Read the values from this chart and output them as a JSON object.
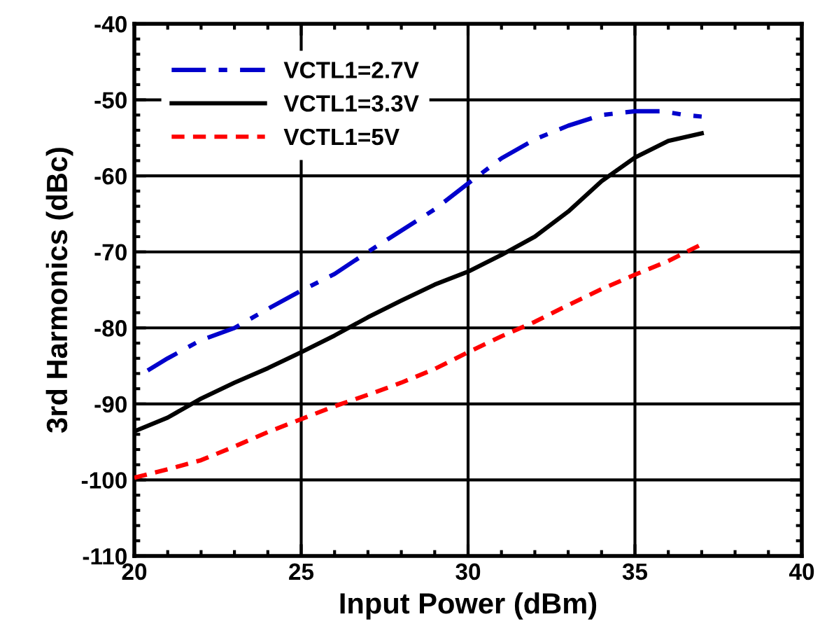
{
  "chart_data": {
    "type": "line",
    "xlabel": "Input Power (dBm)",
    "ylabel": "3rd Harmonics (dBc)",
    "xlim": [
      20,
      40
    ],
    "xticks": [
      20,
      25,
      30,
      35,
      40
    ],
    "ylim": [
      -110,
      -40
    ],
    "yticks": [
      -110,
      -100,
      -90,
      -80,
      -70,
      -60,
      -50,
      -40
    ],
    "grid": true,
    "legend": "top left",
    "marker": "none",
    "series": [
      {
        "name": "VCTL1=2.7V",
        "color": "#0000cc",
        "line_style": "dashdot",
        "x": [
          20.4,
          21,
          22,
          23,
          24,
          25,
          26,
          27,
          28,
          29,
          30,
          31,
          32,
          33,
          34,
          35,
          35.8,
          36.5,
          37
        ],
        "values": [
          -85.6,
          -84,
          -81.6,
          -80,
          -77.5,
          -75.1,
          -72.9,
          -70,
          -67.2,
          -64.4,
          -61,
          -57.7,
          -55.2,
          -53.4,
          -52,
          -51.5,
          -51.5,
          -52,
          -52.2
        ]
      },
      {
        "name": "VCTL1=3.3V",
        "color": "#000000",
        "line_style": "solid",
        "x": [
          20,
          21,
          22,
          23,
          24,
          25,
          26,
          27,
          28,
          29,
          30,
          31,
          32,
          33,
          34,
          35,
          36,
          37
        ],
        "values": [
          -93.6,
          -91.8,
          -89.3,
          -87.2,
          -85.3,
          -83.2,
          -81,
          -78.6,
          -76.4,
          -74.3,
          -72.6,
          -70.4,
          -68,
          -64.7,
          -60.7,
          -57.6,
          -55.4,
          -54.4
        ]
      },
      {
        "name": "VCTL1=5V",
        "color": "#ff0000",
        "line_style": "dashed",
        "x": [
          20,
          21,
          22,
          23,
          24,
          25,
          26,
          27,
          28,
          29,
          30,
          31,
          32,
          33,
          34,
          35,
          36,
          37
        ],
        "values": [
          -99.7,
          -98.6,
          -97.4,
          -95.6,
          -93.7,
          -92,
          -90.3,
          -88.8,
          -87.2,
          -85.4,
          -83.2,
          -81.1,
          -79.2,
          -77,
          -74.9,
          -73,
          -71.2,
          -69
        ]
      }
    ]
  }
}
